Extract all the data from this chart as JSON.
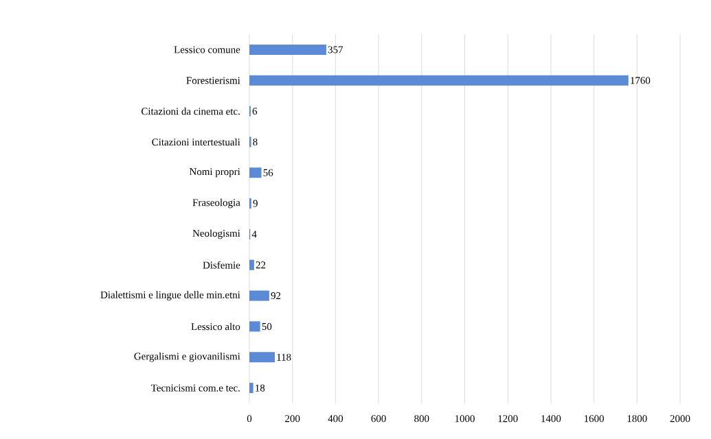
{
  "chart_data": {
    "type": "bar",
    "orientation": "horizontal",
    "categories": [
      "Lessico comune",
      "Forestierismi",
      "Citazioni da cinema etc.",
      "Citazioni intertestuali",
      "Nomi propri",
      "Fraseologia",
      "Neologismi",
      "Disfemie",
      "Dialettismi e lingue delle min.etni",
      "Lessico alto",
      "Gergalismi e giovanilismi",
      "Tecnicismi com.e tec."
    ],
    "values": [
      357,
      1760,
      6,
      8,
      56,
      9,
      4,
      22,
      92,
      50,
      118,
      18
    ],
    "color": "#5b8ad6",
    "data_labels": true,
    "xlim": [
      0,
      2000
    ],
    "xticks": [
      0,
      200,
      400,
      600,
      800,
      1000,
      1200,
      1400,
      1600,
      1800,
      2000
    ],
    "grid": "x"
  }
}
